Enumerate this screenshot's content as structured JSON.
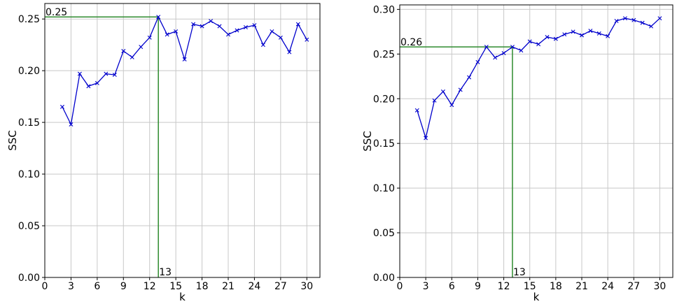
{
  "chart_data": [
    {
      "type": "line",
      "xlabel": "k",
      "ylabel": "SSC",
      "xlim": [
        0,
        31.5
      ],
      "ylim": [
        0,
        0.265
      ],
      "xticks": [
        0,
        3,
        6,
        9,
        12,
        15,
        18,
        21,
        24,
        27,
        30
      ],
      "xtick_labels": [
        "0",
        "3",
        "6",
        "9",
        "12",
        "15",
        "18",
        "21",
        "24",
        "27",
        "30"
      ],
      "yticks": [
        0,
        0.05,
        0.1,
        0.15,
        0.2,
        0.25
      ],
      "ytick_labels": [
        "0.00",
        "0.05",
        "0.10",
        "0.15",
        "0.20",
        "0.25"
      ],
      "grid": true,
      "series": [
        {
          "x": [
            2,
            3,
            4,
            5,
            6,
            7,
            8,
            9,
            10,
            11,
            12,
            13,
            14,
            15,
            16,
            17,
            18,
            19,
            20,
            21,
            22,
            23,
            24,
            25,
            26,
            27,
            28,
            29,
            30
          ],
          "values": [
            0.165,
            0.148,
            0.197,
            0.185,
            0.188,
            0.197,
            0.196,
            0.219,
            0.213,
            0.223,
            0.232,
            0.252,
            0.235,
            0.238,
            0.211,
            0.245,
            0.243,
            0.248,
            0.243,
            0.235,
            0.239,
            0.242,
            0.244,
            0.225,
            0.238,
            0.232,
            0.218,
            0.245,
            0.23
          ],
          "color": "#0000cc",
          "marker": "x"
        }
      ],
      "highlight": {
        "x": 13,
        "y": 0.252,
        "x_label": "13",
        "y_label": "0.25",
        "color": "#2e8b2e"
      }
    },
    {
      "type": "line",
      "xlabel": "k",
      "ylabel": "SSC",
      "xlim": [
        0,
        31.5
      ],
      "ylim": [
        0,
        0.305
      ],
      "xticks": [
        0,
        3,
        6,
        9,
        12,
        15,
        18,
        21,
        24,
        27,
        30
      ],
      "xtick_labels": [
        "0",
        "3",
        "6",
        "9",
        "12",
        "15",
        "18",
        "21",
        "24",
        "27",
        "30"
      ],
      "yticks": [
        0,
        0.05,
        0.1,
        0.15,
        0.2,
        0.25,
        0.3
      ],
      "ytick_labels": [
        "0.00",
        "0.05",
        "0.10",
        "0.15",
        "0.20",
        "0.25",
        "0.30"
      ],
      "grid": true,
      "series": [
        {
          "x": [
            2,
            3,
            4,
            5,
            6,
            7,
            8,
            9,
            10,
            11,
            12,
            13,
            14,
            15,
            16,
            17,
            18,
            19,
            20,
            21,
            22,
            23,
            24,
            25,
            26,
            27,
            28,
            29,
            30
          ],
          "values": [
            0.187,
            0.156,
            0.198,
            0.208,
            0.193,
            0.21,
            0.224,
            0.241,
            0.258,
            0.246,
            0.251,
            0.258,
            0.254,
            0.264,
            0.261,
            0.269,
            0.267,
            0.272,
            0.275,
            0.271,
            0.276,
            0.273,
            0.27,
            0.287,
            0.29,
            0.288,
            0.285,
            0.281,
            0.29
          ],
          "color": "#0000cc",
          "marker": "x"
        }
      ],
      "highlight": {
        "x": 13,
        "y": 0.258,
        "x_label": "13",
        "y_label": "0.26",
        "color": "#2e8b2e"
      }
    }
  ]
}
